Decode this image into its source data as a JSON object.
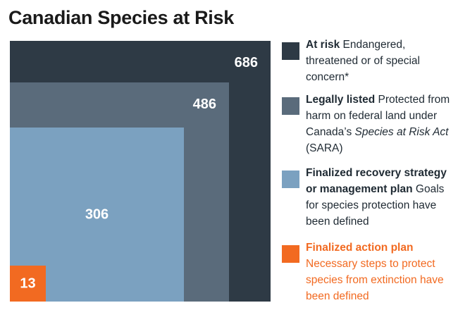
{
  "title": "Canadian Species at Risk",
  "colors": {
    "at_risk": "#2e3a45",
    "legally_listed": "#5a6b7b",
    "recovery": "#7ba1c0",
    "action_plan": "#f26a21"
  },
  "chart_data": {
    "type": "nested-square",
    "title": "Canadian Species at Risk",
    "series": [
      {
        "name": "At risk",
        "value": 686,
        "label": "686"
      },
      {
        "name": "Legally listed",
        "value": 486,
        "label": "486"
      },
      {
        "name": "Finalized recovery strategy or management plan",
        "value": 306,
        "label": "306"
      },
      {
        "name": "Finalized action plan",
        "value": 13,
        "label": "13"
      }
    ]
  },
  "legend": {
    "at_risk": {
      "bold": "At risk",
      "rest": " Endangered, threatened or of special concern*"
    },
    "legally_listed": {
      "bold": "Legally listed",
      "rest_a": " Protected from harm on federal land under Canada’s ",
      "italic_a": "Species at Risk Act",
      "rest_b": " (SARA)"
    },
    "recovery": {
      "bold": "Finalized recovery strategy or management plan",
      "rest": " Goals for species protection have been defined"
    },
    "action_plan": {
      "bold": "Finalized action plan",
      "rest": "Necessary steps to protect species from extinction have been defined"
    }
  }
}
